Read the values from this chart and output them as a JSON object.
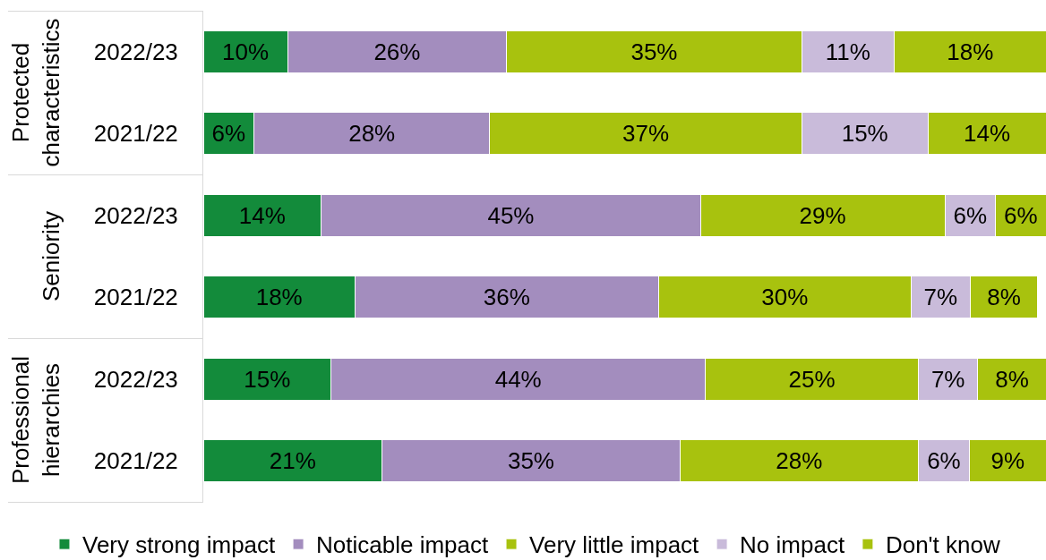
{
  "chart_data": [
    {
      "type": "bar",
      "orientation": "horizontal",
      "stacked": true,
      "ylabel": "Protected characteristics",
      "categories": [
        "2022/23",
        "2021/22"
      ],
      "series": [
        {
          "color": "#138b3b",
          "values": [
            10,
            6
          ],
          "value_labels": [
            "10%",
            "6%"
          ]
        },
        {
          "color": "#a38dbe",
          "values": [
            26,
            28
          ],
          "value_labels": [
            "26%",
            "28%"
          ]
        },
        {
          "color": "#a8c20e",
          "values": [
            35,
            37
          ],
          "value_labels": [
            "35%",
            "37%"
          ]
        },
        {
          "color": "#c9bbda",
          "values": [
            11,
            15
          ],
          "value_labels": [
            "11%",
            "15%"
          ]
        },
        {
          "color": "#a8c20e",
          "values": [
            18,
            14
          ],
          "value_labels": [
            "18%",
            "14%"
          ]
        }
      ],
      "legend": false
    },
    {
      "type": "bar",
      "orientation": "horizontal",
      "stacked": true,
      "ylabel": "Seniority",
      "categories": [
        "2022/23",
        "2021/22"
      ],
      "series": [
        {
          "color": "#138b3b",
          "values": [
            14,
            18
          ],
          "value_labels": [
            "14%",
            "18%"
          ]
        },
        {
          "color": "#a38dbe",
          "values": [
            45,
            36
          ],
          "value_labels": [
            "45%",
            "36%"
          ]
        },
        {
          "color": "#a8c20e",
          "values": [
            29,
            30
          ],
          "value_labels": [
            "29%",
            "30%"
          ]
        },
        {
          "color": "#c9bbda",
          "values": [
            6,
            7
          ],
          "value_labels": [
            "6%",
            "7%"
          ]
        },
        {
          "color": "#a8c20e",
          "values": [
            6,
            8
          ],
          "value_labels": [
            "6%",
            "8%"
          ]
        }
      ],
      "legend": false
    },
    {
      "type": "bar",
      "orientation": "horizontal",
      "stacked": true,
      "ylabel": "Professional hierarchies",
      "categories": [
        "2022/23",
        "2021/22"
      ],
      "series": [
        {
          "name": "Very strong impact",
          "color": "#138b3b",
          "values": [
            15,
            21
          ],
          "value_labels": [
            "15%",
            "21%"
          ]
        },
        {
          "name": "Noticable impact",
          "color": "#a38dbe",
          "values": [
            44,
            35
          ],
          "value_labels": [
            "44%",
            "35%"
          ]
        },
        {
          "name": "Very little impact",
          "color": "#a8c20e",
          "values": [
            25,
            28
          ],
          "value_labels": [
            "25%",
            "28%"
          ]
        },
        {
          "name": "No impact",
          "color": "#c9bbda",
          "values": [
            7,
            6
          ],
          "value_labels": [
            "7%",
            "6%"
          ]
        },
        {
          "name": "Don't know",
          "color": "#a8c20e",
          "values": [
            8,
            9
          ],
          "value_labels": [
            "8%",
            "9%"
          ]
        }
      ],
      "legend": "bottom"
    }
  ]
}
